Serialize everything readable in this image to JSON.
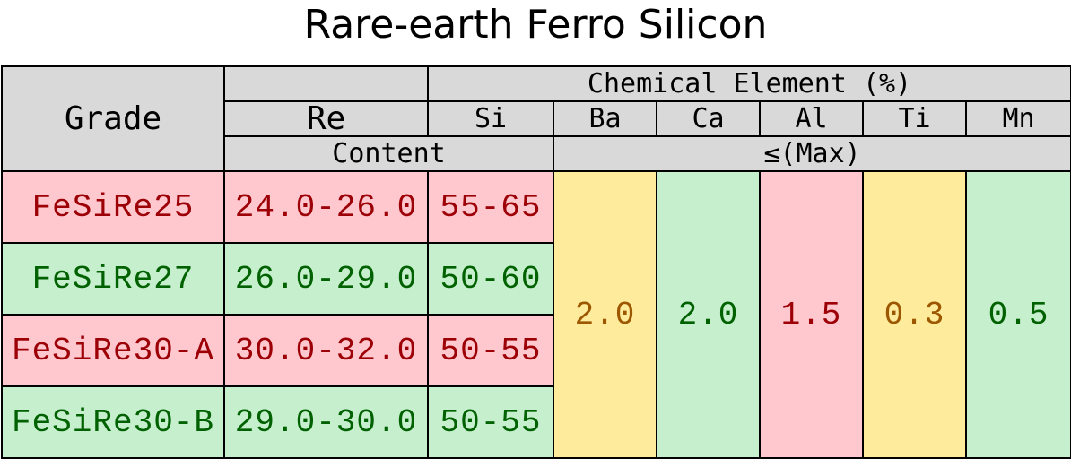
{
  "title": "Rare-earth Ferro Silicon",
  "header": {
    "grade": "Grade",
    "chemical_element": "Chemical Element (%)",
    "columns": [
      "Re",
      "Si",
      "Ba",
      "Ca",
      "Al",
      "Ti",
      "Mn"
    ],
    "content": "Content",
    "max": "≤(Max)"
  },
  "rows": [
    [
      "FeSiRe25",
      "24.0-26.0",
      "55-65"
    ],
    [
      "FeSiRe27",
      "26.0-29.0",
      "50-60"
    ],
    [
      "FeSiRe30-A",
      "30.0-32.0",
      "50-55"
    ],
    [
      "FeSiRe30-B",
      "29.0-30.0",
      "50-55"
    ]
  ],
  "limits": [
    "2.0",
    "2.0",
    "1.5",
    "0.3",
    "0.5"
  ]
}
